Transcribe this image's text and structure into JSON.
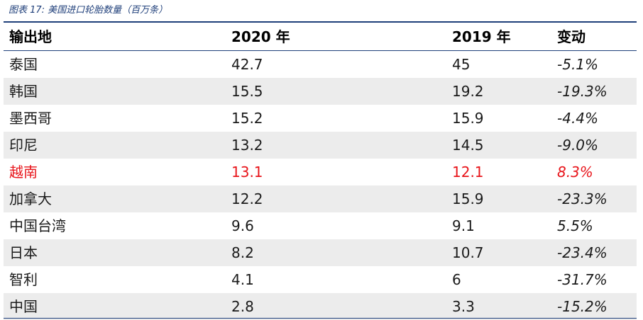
{
  "caption": "图表 17:  美国进口轮胎数量（百万条）",
  "table": {
    "headers": {
      "origin": "输出地",
      "y2020": "2020 年",
      "y2019": "2019 年",
      "change": "变动"
    },
    "rows": [
      {
        "origin": "泰国",
        "y2020": "42.7",
        "y2019": "45",
        "change": "-5.1%"
      },
      {
        "origin": "韩国",
        "y2020": "15.5",
        "y2019": "19.2",
        "change": "-19.3%"
      },
      {
        "origin": "墨西哥",
        "y2020": "15.2",
        "y2019": "15.9",
        "change": "-4.4%"
      },
      {
        "origin": "印尼",
        "y2020": "13.2",
        "y2019": "14.5",
        "change": "-9.0%"
      },
      {
        "origin": "越南",
        "y2020": "13.1",
        "y2019": "12.1",
        "change": "8.3%"
      },
      {
        "origin": "加拿大",
        "y2020": "12.2",
        "y2019": "15.9",
        "change": "-23.3%"
      },
      {
        "origin": "中国台湾",
        "y2020": "9.6",
        "y2019": "9.1",
        "change": "5.5%"
      },
      {
        "origin": "日本",
        "y2020": "8.2",
        "y2019": "10.7",
        "change": "-23.4%"
      },
      {
        "origin": "智利",
        "y2020": "4.1",
        "y2019": "6",
        "change": "-31.7%"
      },
      {
        "origin": "中国",
        "y2020": "2.8",
        "y2019": "3.3",
        "change": "-15.2%"
      }
    ]
  },
  "colors": {
    "accent": "#1f3f7a",
    "highlight": "#e8141a",
    "row_shade": "#ececec"
  }
}
